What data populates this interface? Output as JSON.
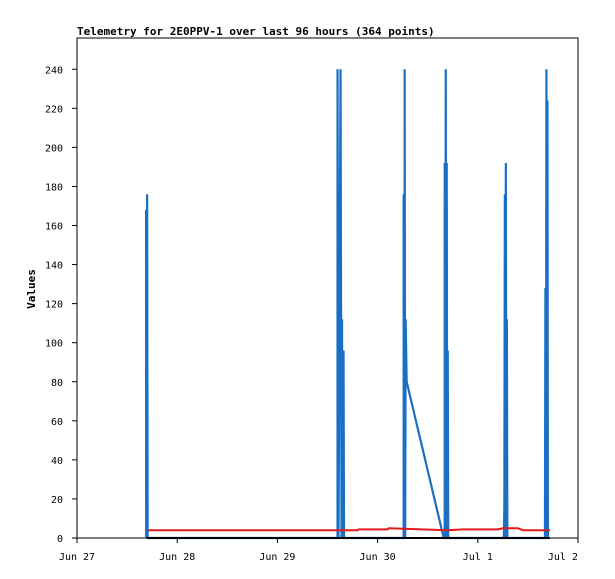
{
  "chart_data": {
    "type": "line",
    "title": "Telemetry for 2E0PPV-1 over last 96 hours (364 points)",
    "xlabel": "",
    "ylabel": "Values",
    "xlim": [
      0,
      5
    ],
    "ylim": [
      0,
      256
    ],
    "x_tick_labels": [
      "Jun 27",
      "Jun 28",
      "Jun 29",
      "Jun 30",
      "Jul 1",
      "Jul 2"
    ],
    "y_ticks": [
      0,
      20,
      40,
      60,
      80,
      100,
      120,
      140,
      160,
      180,
      200,
      220,
      240
    ],
    "grid": false,
    "legend": "none",
    "colors": {
      "spikes": "#1a6fc4",
      "red_series": "#e0191c",
      "black_series": "#000000",
      "frame": "#000000"
    },
    "series": [
      {
        "values": [
          [
            0.69,
            0
          ],
          [
            0.69,
            168
          ],
          [
            0.695,
            0
          ],
          [
            0.7,
            176
          ],
          [
            0.705,
            0
          ],
          [
            2.6,
            0
          ],
          [
            2.6,
            240
          ],
          [
            2.61,
            0
          ],
          [
            2.63,
            240
          ],
          [
            2.64,
            0
          ],
          [
            2.645,
            112
          ],
          [
            2.65,
            0
          ],
          [
            2.66,
            96
          ],
          [
            2.665,
            0
          ],
          [
            3.26,
            0
          ],
          [
            3.26,
            176
          ],
          [
            3.27,
            0
          ],
          [
            3.27,
            240
          ],
          [
            3.275,
            0
          ],
          [
            3.28,
            112
          ],
          [
            3.29,
            80
          ],
          [
            3.66,
            0
          ],
          [
            3.67,
            0
          ],
          [
            3.67,
            192
          ],
          [
            3.675,
            0
          ],
          [
            3.68,
            240
          ],
          [
            3.685,
            0
          ],
          [
            3.69,
            192
          ],
          [
            3.695,
            0
          ],
          [
            3.7,
            96
          ],
          [
            3.705,
            0
          ],
          [
            4.26,
            0
          ],
          [
            4.265,
            16
          ],
          [
            4.27,
            176
          ],
          [
            4.275,
            0
          ],
          [
            4.28,
            192
          ],
          [
            4.285,
            0
          ],
          [
            4.29,
            112
          ],
          [
            4.295,
            0
          ],
          [
            4.67,
            0
          ],
          [
            4.675,
            128
          ],
          [
            4.68,
            0
          ],
          [
            4.685,
            240
          ],
          [
            4.69,
            0
          ],
          [
            4.695,
            224
          ],
          [
            4.7,
            0
          ]
        ]
      },
      {
        "values": [
          [
            0.7,
            4
          ],
          [
            2.6,
            4
          ],
          [
            2.8,
            4
          ],
          [
            2.81,
            4.4
          ],
          [
            3.1,
            4.4
          ],
          [
            3.11,
            5
          ],
          [
            3.7,
            4
          ],
          [
            3.85,
            4.4
          ],
          [
            4.2,
            4.4
          ],
          [
            4.25,
            5
          ],
          [
            4.4,
            5
          ],
          [
            4.45,
            4
          ],
          [
            4.72,
            4
          ]
        ]
      },
      {
        "values": [
          [
            0.7,
            0
          ],
          [
            4.72,
            0
          ]
        ]
      }
    ]
  }
}
